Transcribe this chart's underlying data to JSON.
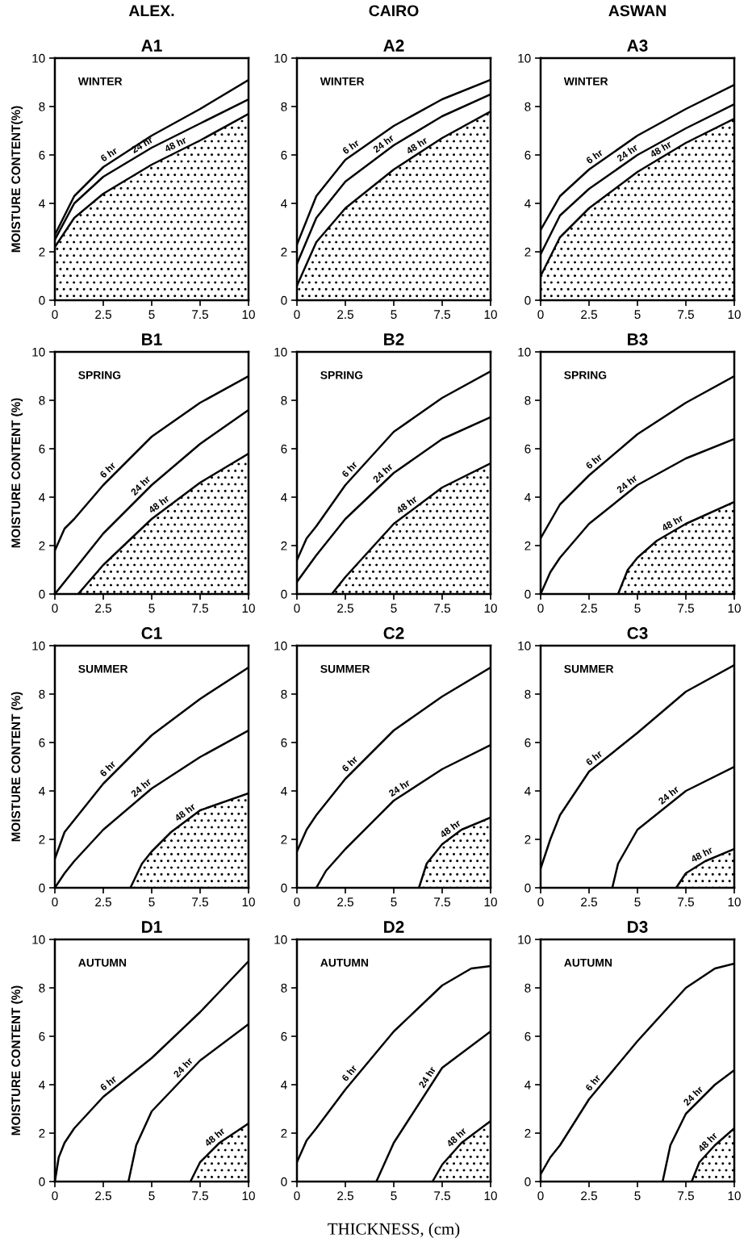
{
  "chart_data": [
    {
      "type": "line",
      "subtitle": "ALEX.",
      "title": "A1",
      "ylabel": "MOISTURE CONTENT(%)",
      "annotations": [
        "WINTER"
      ],
      "xlim": [
        0,
        10
      ],
      "ylim": [
        0,
        10
      ],
      "xticks": [
        0,
        2.5,
        5,
        7.5,
        10
      ],
      "yticks": [
        0,
        2,
        4,
        6,
        8,
        10
      ],
      "series": [
        {
          "name": "6 hr",
          "color": "#000000",
          "x": [
            0,
            1,
            2.5,
            5,
            7.5,
            10
          ],
          "values": [
            2.7,
            4.3,
            5.5,
            6.8,
            7.9,
            9.1
          ]
        },
        {
          "name": "24 hr",
          "color": "#000000",
          "x": [
            0,
            1,
            2.5,
            5,
            7.5,
            10
          ],
          "values": [
            2.5,
            4.0,
            5.1,
            6.3,
            7.3,
            8.3
          ]
        },
        {
          "name": "48 hr",
          "type": "area",
          "color": "#000000",
          "x": [
            0,
            1,
            2.5,
            5,
            7.5,
            10
          ],
          "values": [
            2.2,
            3.4,
            4.4,
            5.6,
            6.6,
            7.7
          ]
        }
      ]
    },
    {
      "type": "line",
      "subtitle": "CAIRO",
      "title": "A2",
      "annotations": [
        "WINTER"
      ],
      "xlim": [
        0,
        10
      ],
      "ylim": [
        0,
        10
      ],
      "xticks": [
        0,
        2.5,
        5,
        7.5,
        10
      ],
      "yticks": [
        0,
        2,
        4,
        6,
        8,
        10
      ],
      "series": [
        {
          "name": "6 hr",
          "color": "#000000",
          "x": [
            0,
            1,
            2.5,
            5,
            7.5,
            10
          ],
          "values": [
            2.3,
            4.3,
            5.8,
            7.2,
            8.3,
            9.1
          ]
        },
        {
          "name": "24 hr",
          "color": "#000000",
          "x": [
            0,
            1,
            2.5,
            5,
            7.5,
            10
          ],
          "values": [
            1.5,
            3.4,
            4.9,
            6.4,
            7.6,
            8.5
          ]
        },
        {
          "name": "48 hr",
          "type": "area",
          "color": "#000000",
          "x": [
            0,
            1,
            2.5,
            5,
            7.5,
            10
          ],
          "values": [
            0.6,
            2.4,
            3.8,
            5.4,
            6.7,
            7.8
          ]
        }
      ]
    },
    {
      "type": "line",
      "subtitle": "ASWAN",
      "title": "A3",
      "annotations": [
        "WINTER"
      ],
      "xlim": [
        0,
        10
      ],
      "ylim": [
        0,
        10
      ],
      "xticks": [
        0,
        2.5,
        5,
        7.5,
        10
      ],
      "yticks": [
        0,
        2,
        4,
        6,
        8,
        10
      ],
      "series": [
        {
          "name": "6 hr",
          "color": "#000000",
          "x": [
            0,
            1,
            2.5,
            5,
            7.5,
            10
          ],
          "values": [
            2.9,
            4.3,
            5.4,
            6.8,
            7.9,
            8.9
          ]
        },
        {
          "name": "24 hr",
          "color": "#000000",
          "x": [
            0,
            1,
            2.5,
            5,
            7.5,
            10
          ],
          "values": [
            1.9,
            3.5,
            4.6,
            6.0,
            7.1,
            8.1
          ]
        },
        {
          "name": "48 hr",
          "type": "area",
          "color": "#000000",
          "x": [
            0,
            1,
            2.5,
            5,
            7.5,
            10
          ],
          "values": [
            1.0,
            2.6,
            3.8,
            5.3,
            6.5,
            7.5
          ]
        }
      ]
    },
    {
      "type": "line",
      "title": "B1",
      "ylabel": "MOISTURE CONTENT (%)",
      "annotations": [
        "SPRING"
      ],
      "xlim": [
        0,
        10
      ],
      "ylim": [
        0,
        10
      ],
      "xticks": [
        0,
        2.5,
        5,
        7.5,
        10
      ],
      "yticks": [
        0,
        2,
        4,
        6,
        8,
        10
      ],
      "series": [
        {
          "name": "6 hr",
          "color": "#000000",
          "x": [
            0,
            0.5,
            1,
            2.5,
            5,
            7.5,
            10
          ],
          "values": [
            1.8,
            2.7,
            3.1,
            4.5,
            6.5,
            7.9,
            9.0
          ]
        },
        {
          "name": "24 hr",
          "color": "#000000",
          "x": [
            0,
            2.5,
            5,
            7.5,
            10
          ],
          "values": [
            0,
            2.5,
            4.5,
            6.2,
            7.6
          ]
        },
        {
          "name": "48 hr",
          "type": "area",
          "color": "#000000",
          "x": [
            1.2,
            2.5,
            5,
            7.5,
            10
          ],
          "values": [
            0,
            1.2,
            3.1,
            4.6,
            5.8
          ]
        }
      ]
    },
    {
      "type": "line",
      "title": "B2",
      "annotations": [
        "SPRING"
      ],
      "xlim": [
        0,
        10
      ],
      "ylim": [
        0,
        10
      ],
      "xticks": [
        0,
        2.5,
        5,
        7.5,
        10
      ],
      "yticks": [
        0,
        2,
        4,
        6,
        8,
        10
      ],
      "series": [
        {
          "name": "6 hr",
          "color": "#000000",
          "x": [
            0,
            0.5,
            1,
            2.5,
            5,
            7.5,
            10
          ],
          "values": [
            1.4,
            2.3,
            2.8,
            4.5,
            6.7,
            8.1,
            9.2
          ]
        },
        {
          "name": "24 hr",
          "color": "#000000",
          "x": [
            0,
            1,
            2.5,
            5,
            7.5,
            10
          ],
          "values": [
            0.5,
            1.6,
            3.1,
            5.0,
            6.4,
            7.3
          ]
        },
        {
          "name": "48 hr",
          "type": "area",
          "color": "#000000",
          "x": [
            1.8,
            2.5,
            5,
            7.5,
            10
          ],
          "values": [
            0,
            0.7,
            2.9,
            4.4,
            5.4
          ]
        }
      ]
    },
    {
      "type": "line",
      "title": "B3",
      "annotations": [
        "SPRING"
      ],
      "xlim": [
        0,
        10
      ],
      "ylim": [
        0,
        10
      ],
      "xticks": [
        0,
        2.5,
        5,
        7.5,
        10
      ],
      "yticks": [
        0,
        2,
        4,
        6,
        8,
        10
      ],
      "series": [
        {
          "name": "6 hr",
          "color": "#000000",
          "x": [
            0,
            1,
            2.5,
            5,
            7.5,
            10
          ],
          "values": [
            2.3,
            3.7,
            4.9,
            6.6,
            7.9,
            9.0
          ]
        },
        {
          "name": "24 hr",
          "color": "#000000",
          "x": [
            0,
            0.5,
            1,
            2.5,
            5,
            7.5,
            10
          ],
          "values": [
            0,
            0.9,
            1.5,
            2.9,
            4.5,
            5.6,
            6.4
          ]
        },
        {
          "name": "48 hr",
          "type": "area",
          "color": "#000000",
          "x": [
            4.0,
            4.5,
            5,
            6,
            7.5,
            10
          ],
          "values": [
            0,
            1.0,
            1.5,
            2.2,
            2.9,
            3.8
          ]
        }
      ]
    },
    {
      "type": "line",
      "title": "C1",
      "ylabel": "MOISTURE CONTENT (%)",
      "annotations": [
        "SUMMER"
      ],
      "xlim": [
        0,
        10
      ],
      "ylim": [
        0,
        10
      ],
      "xticks": [
        0,
        2.5,
        5,
        7.5,
        10
      ],
      "yticks": [
        0,
        2,
        4,
        6,
        8,
        10
      ],
      "series": [
        {
          "name": "6 hr",
          "color": "#000000",
          "x": [
            0,
            0.5,
            1,
            2.5,
            5,
            7.5,
            10
          ],
          "values": [
            1.2,
            2.3,
            2.8,
            4.3,
            6.3,
            7.8,
            9.1
          ]
        },
        {
          "name": "24 hr",
          "color": "#000000",
          "x": [
            0,
            0.5,
            1,
            2.5,
            5,
            7.5,
            10
          ],
          "values": [
            0,
            0.6,
            1.1,
            2.4,
            4.1,
            5.4,
            6.5
          ]
        },
        {
          "name": "48 hr",
          "type": "area",
          "color": "#000000",
          "x": [
            3.9,
            4.5,
            5,
            6,
            7.5,
            10
          ],
          "values": [
            0,
            1.0,
            1.5,
            2.3,
            3.2,
            3.9
          ]
        }
      ]
    },
    {
      "type": "line",
      "title": "C2",
      "annotations": [
        "SUMMER"
      ],
      "xlim": [
        0,
        10
      ],
      "ylim": [
        0,
        10
      ],
      "xticks": [
        0,
        2.5,
        5,
        7.5,
        10
      ],
      "yticks": [
        0,
        2,
        4,
        6,
        8,
        10
      ],
      "series": [
        {
          "name": "6 hr",
          "color": "#000000",
          "x": [
            0,
            0.5,
            1,
            2.5,
            5,
            7.5,
            10
          ],
          "values": [
            1.5,
            2.4,
            3.0,
            4.5,
            6.5,
            7.9,
            9.1
          ]
        },
        {
          "name": "24 hr",
          "color": "#000000",
          "x": [
            1.0,
            1.5,
            2.5,
            5,
            7.5,
            10
          ],
          "values": [
            0,
            0.7,
            1.6,
            3.6,
            4.9,
            5.9
          ]
        },
        {
          "name": "48 hr",
          "type": "area",
          "color": "#000000",
          "x": [
            6.3,
            6.7,
            7.5,
            8.5,
            10
          ],
          "values": [
            0,
            1.0,
            1.8,
            2.4,
            2.9
          ]
        }
      ]
    },
    {
      "type": "line",
      "title": "C3",
      "annotations": [
        "SUMMER"
      ],
      "xlim": [
        0,
        10
      ],
      "ylim": [
        0,
        10
      ],
      "xticks": [
        0,
        2.5,
        5,
        7.5,
        10
      ],
      "yticks": [
        0,
        2,
        4,
        6,
        8,
        10
      ],
      "series": [
        {
          "name": "6 hr",
          "color": "#000000",
          "x": [
            0,
            0.5,
            1,
            2.5,
            5,
            7.5,
            10
          ],
          "values": [
            0.8,
            2.0,
            3.0,
            4.8,
            6.4,
            8.1,
            9.2
          ]
        },
        {
          "name": "24 hr",
          "color": "#000000",
          "x": [
            3.7,
            4.0,
            5,
            7.5,
            10
          ],
          "values": [
            0,
            1.0,
            2.4,
            4.0,
            5.0
          ]
        },
        {
          "name": "48 hr",
          "type": "area",
          "color": "#000000",
          "x": [
            7.0,
            7.5,
            8.5,
            10
          ],
          "values": [
            0,
            0.6,
            1.1,
            1.6
          ]
        }
      ]
    },
    {
      "type": "line",
      "title": "D1",
      "ylabel": "MOISTURE CONTENT (%)",
      "annotations": [
        "AUTUMN"
      ],
      "xlim": [
        0,
        10
      ],
      "ylim": [
        0,
        10
      ],
      "xticks": [
        0,
        2.5,
        5,
        7.5,
        10
      ],
      "yticks": [
        0,
        2,
        4,
        6,
        8,
        10
      ],
      "series": [
        {
          "name": "6 hr",
          "color": "#000000",
          "x": [
            0,
            0.2,
            0.5,
            1,
            2.5,
            5,
            7.5,
            10
          ],
          "values": [
            0,
            1.0,
            1.6,
            2.2,
            3.5,
            5.1,
            7.0,
            9.1
          ]
        },
        {
          "name": "24 hr",
          "color": "#000000",
          "x": [
            3.8,
            4.2,
            5,
            7.5,
            10
          ],
          "values": [
            0,
            1.5,
            2.9,
            5.0,
            6.5
          ]
        },
        {
          "name": "48 hr",
          "type": "area",
          "color": "#000000",
          "x": [
            7.0,
            7.5,
            8.5,
            10
          ],
          "values": [
            0,
            0.8,
            1.6,
            2.4
          ]
        }
      ]
    },
    {
      "type": "line",
      "title": "D2",
      "xlabel": "THICKNESS, (cm)",
      "annotations": [
        "AUTUMN"
      ],
      "xlim": [
        0,
        10
      ],
      "ylim": [
        0,
        10
      ],
      "xticks": [
        0,
        2.5,
        5,
        7.5,
        10
      ],
      "yticks": [
        0,
        2,
        4,
        6,
        8,
        10
      ],
      "series": [
        {
          "name": "6 hr",
          "color": "#000000",
          "x": [
            0,
            0.5,
            1,
            2.5,
            5,
            7.5,
            9,
            10
          ],
          "values": [
            0.8,
            1.7,
            2.2,
            3.8,
            6.2,
            8.1,
            8.8,
            8.9
          ]
        },
        {
          "name": "24 hr",
          "color": "#000000",
          "x": [
            4.1,
            5,
            7.5,
            10
          ],
          "values": [
            0,
            1.6,
            4.7,
            6.2
          ]
        },
        {
          "name": "48 hr",
          "type": "area",
          "color": "#000000",
          "x": [
            7.0,
            7.5,
            8.5,
            10
          ],
          "values": [
            0,
            0.7,
            1.6,
            2.5
          ]
        }
      ]
    },
    {
      "type": "line",
      "title": "D3",
      "annotations": [
        "AUTUMN"
      ],
      "xlim": [
        0,
        10
      ],
      "ylim": [
        0,
        10
      ],
      "xticks": [
        0,
        2.5,
        5,
        7.5,
        10
      ],
      "yticks": [
        0,
        2,
        4,
        6,
        8,
        10
      ],
      "series": [
        {
          "name": "6 hr",
          "color": "#000000",
          "x": [
            0,
            0.5,
            1,
            2.5,
            5,
            7.5,
            9,
            10
          ],
          "values": [
            0.3,
            1.0,
            1.5,
            3.4,
            5.8,
            8.0,
            8.8,
            9.0
          ]
        },
        {
          "name": "24 hr",
          "color": "#000000",
          "x": [
            6.3,
            6.7,
            7.5,
            9,
            10
          ],
          "values": [
            0,
            1.5,
            2.8,
            4.0,
            4.6
          ]
        },
        {
          "name": "48 hr",
          "type": "area",
          "color": "#000000",
          "x": [
            7.8,
            8.2,
            9,
            10
          ],
          "values": [
            0,
            0.8,
            1.5,
            2.2
          ]
        }
      ]
    }
  ]
}
